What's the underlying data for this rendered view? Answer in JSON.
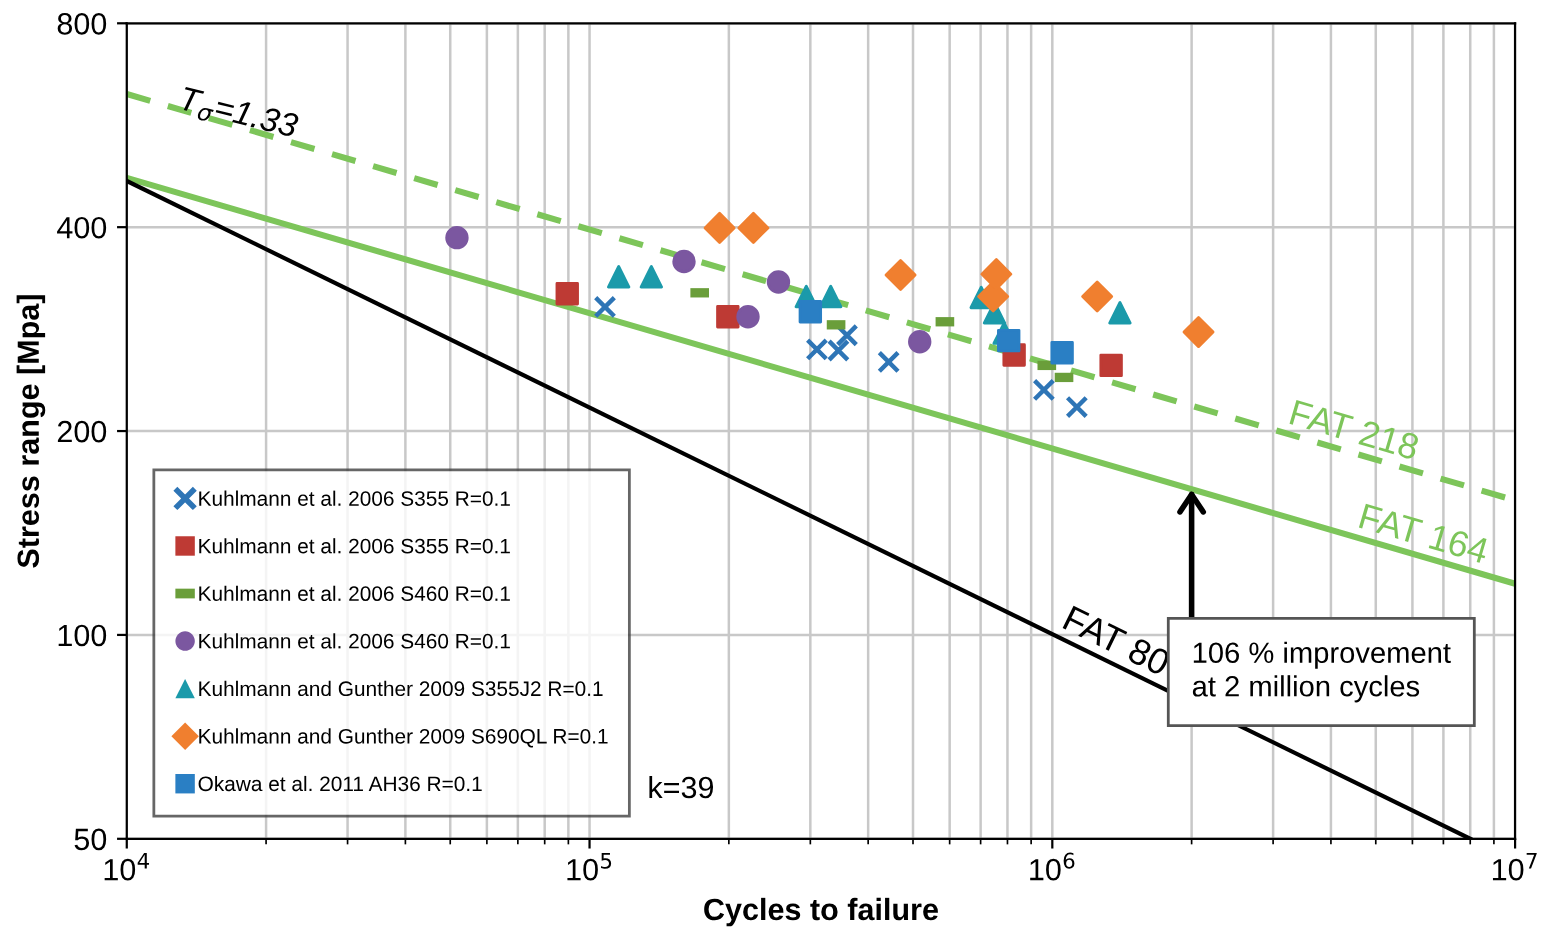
{
  "chart_data": {
    "type": "scatter",
    "xlabel": "Cycles to failure",
    "ylabel": "Stress range [Mpa]",
    "log": "xy",
    "xlim": [
      10000,
      10000000
    ],
    "ylim": [
      50,
      800
    ],
    "xticks": [
      {
        "value": 10000,
        "label": "10$^{4}$"
      },
      {
        "value": 100000,
        "label": "10$^{5}$"
      },
      {
        "value": 1000000,
        "label": "10$^{6}$"
      },
      {
        "value": 10000000,
        "label": "10$^{7}$"
      }
    ],
    "yticks": [
      50,
      100,
      200,
      400,
      800
    ],
    "grid": true,
    "legend": "bottom left",
    "series": [
      {
        "name": "Kuhlmann et al. 2006 S355 R=0.1",
        "color": "#2e75b6",
        "marker": "cross",
        "x": [
          108000,
          310000,
          345000,
          360000,
          443000,
          959000,
          1130000
        ],
        "values": [
          305,
          264,
          263,
          277,
          253,
          230,
          217
        ]
      },
      {
        "name": "Kuhlmann et al. 2006 S355 R=0.1",
        "color": "#be3a34",
        "marker": "square",
        "x": [
          89500,
          199000,
          827000,
          1340000
        ],
        "values": [
          319,
          295,
          259,
          250
        ]
      },
      {
        "name": "Kuhlmann et al. 2006 S460 R=0.1",
        "color": "#6a9e3a",
        "x": [
          173000,
          341000,
          586000,
          973000,
          1060000
        ],
        "values": [
          320,
          287,
          290,
          250,
          240
        ]
      },
      {
        "name": "Kuhlmann et al. 2006 S460 R=0.1",
        "color": "#7b57a0",
        "marker": "circle",
        "x": [
          51700,
          160000,
          220000,
          256000,
          517000
        ],
        "values": [
          386,
          356,
          295,
          332,
          271
        ]
      },
      {
        "name": "Kuhlmann and Gunther 2009 S355J2 R=0.1",
        "color": "#1b9aaa",
        "marker": "triangle",
        "x": [
          115600,
          136000,
          294000,
          332000,
          702000,
          750000,
          787000,
          1400000
        ],
        "values": [
          338,
          338,
          316,
          316,
          315,
          299,
          279,
          299
        ]
      },
      {
        "name": "Kuhlmann and Gunther 2009 S690QL R=0.1",
        "color": "#f07f2f",
        "marker": "diamond",
        "x": [
          191000,
          226000,
          470000,
          745000,
          757000,
          1250000,
          2070000
        ],
        "values": [
          399,
          399,
          340,
          316,
          341,
          316,
          280
        ]
      },
      {
        "name": "Okawa et al. 2011 AH36 R=0.1",
        "color": "#2a7fc4",
        "marker": "square",
        "x": [
          300000,
          805000,
          1050000
        ],
        "values": [
          300,
          272,
          261
        ]
      },
      {
        "name": "FAT 218",
        "type": "line",
        "color": "#7dc55a",
        "line_style": "dashed",
        "x": [
          10000,
          10000000
        ],
        "values": [
          629,
          158
        ]
      },
      {
        "name": "FAT 164",
        "type": "line",
        "color": "#7dc55a",
        "line_style": "solid",
        "x": [
          10000,
          10000000
        ],
        "values": [
          473,
          119
        ]
      },
      {
        "name": "FAT 80",
        "type": "line",
        "color": "#000000",
        "line_style": "solid",
        "x": [
          10000,
          8000000
        ],
        "values": [
          468,
          50
        ]
      }
    ],
    "annotations": [
      "T$_{σ}$=1.33",
      "k=39",
      {
        "text": "106 % improvement\nat 2 million cycles",
        "x": 2000000,
        "y": 164
      }
    ]
  }
}
